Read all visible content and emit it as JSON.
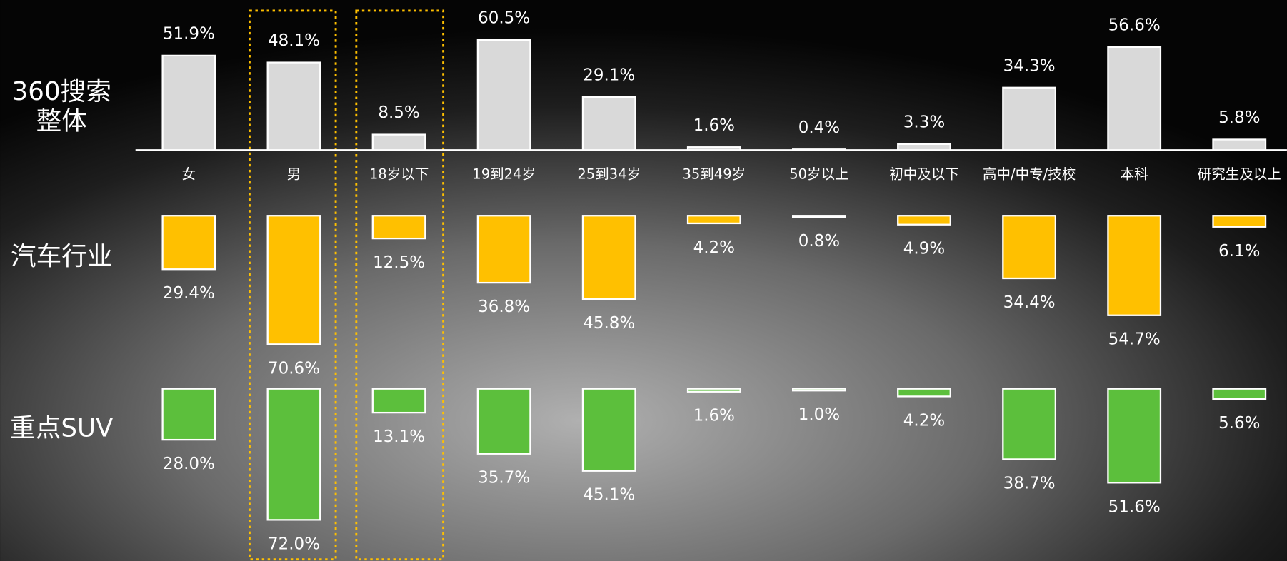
{
  "chart_data": {
    "type": "bar",
    "categories": [
      "女",
      "男",
      "18岁以下",
      "19到24岁",
      "25到34岁",
      "35到49岁",
      "50岁以上",
      "初中及以下",
      "高中/中专/技校",
      "本科",
      "研究生及以上"
    ],
    "series": [
      {
        "name": "360搜索整体",
        "color": "#d9d9d9",
        "values": [
          51.9,
          48.1,
          8.5,
          60.5,
          29.1,
          1.6,
          0.4,
          3.3,
          34.3,
          56.6,
          5.8
        ],
        "value_labels": [
          "51.9%",
          "48.1%",
          "8.5%",
          "60.5%",
          "29.1%",
          "1.6%",
          "0.4%",
          "3.3%",
          "34.3%",
          "56.6%",
          "5.8%"
        ]
      },
      {
        "name": "汽车行业",
        "color": "#ffc000",
        "values": [
          29.4,
          70.6,
          12.5,
          36.8,
          45.8,
          4.2,
          0.8,
          4.9,
          34.4,
          54.7,
          6.1
        ],
        "value_labels": [
          "29.4%",
          "70.6%",
          "12.5%",
          "36.8%",
          "45.8%",
          "4.2%",
          "0.8%",
          "4.9%",
          "34.4%",
          "54.7%",
          "6.1%"
        ]
      },
      {
        "name": "重点SUV",
        "color": "#5cbf3c",
        "values": [
          28.0,
          72.0,
          13.1,
          35.7,
          45.1,
          1.6,
          1.0,
          4.2,
          38.7,
          51.6,
          5.6
        ],
        "value_labels": [
          "28.0%",
          "72.0%",
          "13.1%",
          "35.7%",
          "45.1%",
          "1.6%",
          "1.0%",
          "4.2%",
          "38.7%",
          "51.6%",
          "5.6%"
        ]
      }
    ]
  }
}
